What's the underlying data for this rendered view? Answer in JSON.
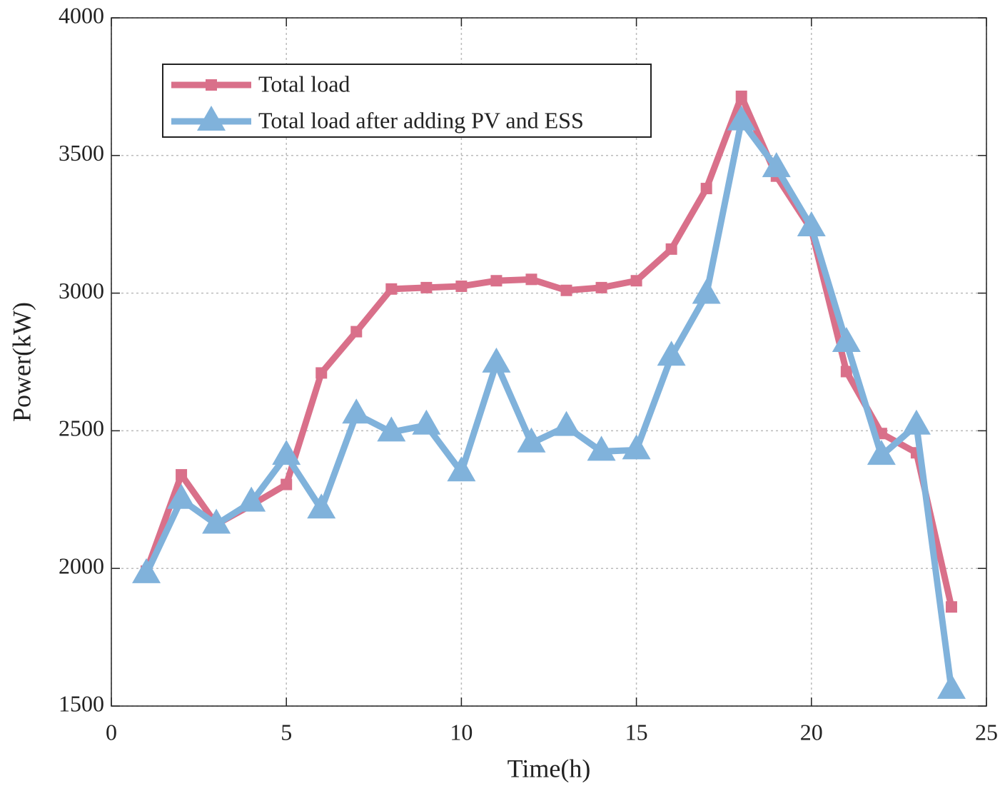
{
  "chart_data": {
    "type": "line",
    "xlabel": "Time(h)",
    "ylabel": "Power(kW)",
    "x": [
      1,
      2,
      3,
      4,
      5,
      6,
      7,
      8,
      9,
      10,
      11,
      12,
      13,
      14,
      15,
      16,
      17,
      18,
      19,
      20,
      21,
      22,
      23,
      24
    ],
    "series": [
      {
        "name": "Total load",
        "color": "#d9708a",
        "marker": "square",
        "values": [
          1990,
          2340,
          2160,
          2230,
          2305,
          2710,
          2860,
          3015,
          3020,
          3025,
          3045,
          3050,
          3010,
          3020,
          3045,
          3160,
          3380,
          3715,
          3425,
          3230,
          2715,
          2490,
          2420,
          1860
        ]
      },
      {
        "name": "Total load after adding PV and ESS",
        "color": "#80b2db",
        "marker": "triangle",
        "values": [
          1980,
          2250,
          2160,
          2240,
          2410,
          2215,
          2560,
          2495,
          2520,
          2350,
          2745,
          2455,
          2515,
          2425,
          2430,
          2770,
          2995,
          3625,
          3455,
          3240,
          2820,
          2410,
          2520,
          1560
        ]
      }
    ],
    "xlim": [
      0,
      25
    ],
    "xticks": [
      0,
      5,
      10,
      15,
      20,
      25
    ],
    "ylim": [
      1500,
      4000
    ],
    "yticks": [
      1500,
      2000,
      2500,
      3000,
      3500,
      4000
    ],
    "grid": true,
    "legend": "upper left"
  }
}
